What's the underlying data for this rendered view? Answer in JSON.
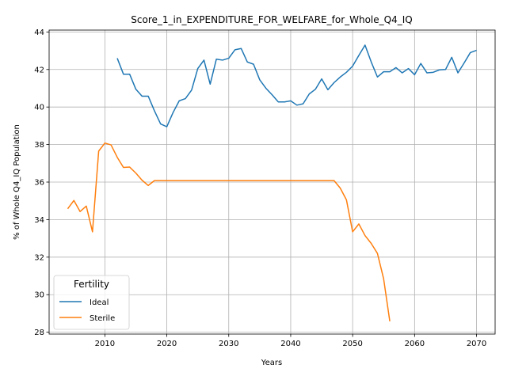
{
  "chart_data": {
    "type": "line",
    "title": "Score_1_in_EXPENDITURE_FOR_WELFARE_for_Whole_Q4_IQ",
    "xlabel": "Years",
    "ylabel": "% of Whole Q4_IQ Population",
    "xlim": [
      2001,
      2073
    ],
    "ylim": [
      27.9,
      44.1
    ],
    "x_ticks": [
      2010,
      2020,
      2030,
      2040,
      2050,
      2060,
      2070
    ],
    "y_ticks": [
      28,
      30,
      32,
      34,
      36,
      38,
      40,
      42,
      44
    ],
    "grid": true,
    "legend": {
      "title": "Fertility",
      "placement": "lower-left"
    },
    "series": [
      {
        "name": "Ideal",
        "color": "#1f77b4",
        "points": [
          [
            2012,
            42.6
          ],
          [
            2013,
            41.75
          ],
          [
            2014,
            41.75
          ],
          [
            2015,
            40.95
          ],
          [
            2016,
            40.58
          ],
          [
            2017,
            40.58
          ],
          [
            2018,
            39.8
          ],
          [
            2019,
            39.1
          ],
          [
            2020,
            38.95
          ],
          [
            2021,
            39.7
          ],
          [
            2022,
            40.33
          ],
          [
            2023,
            40.45
          ],
          [
            2024,
            40.9
          ],
          [
            2025,
            42.05
          ],
          [
            2026,
            42.5
          ],
          [
            2027,
            41.22
          ],
          [
            2028,
            42.55
          ],
          [
            2029,
            42.5
          ],
          [
            2030,
            42.6
          ],
          [
            2031,
            43.05
          ],
          [
            2032,
            43.12
          ],
          [
            2033,
            42.4
          ],
          [
            2034,
            42.28
          ],
          [
            2035,
            41.45
          ],
          [
            2036,
            41.0
          ],
          [
            2037,
            40.65
          ],
          [
            2038,
            40.27
          ],
          [
            2039,
            40.27
          ],
          [
            2040,
            40.33
          ],
          [
            2041,
            40.1
          ],
          [
            2042,
            40.17
          ],
          [
            2043,
            40.7
          ],
          [
            2044,
            40.95
          ],
          [
            2045,
            41.5
          ],
          [
            2046,
            40.92
          ],
          [
            2047,
            41.3
          ],
          [
            2048,
            41.6
          ],
          [
            2049,
            41.85
          ],
          [
            2050,
            42.18
          ],
          [
            2051,
            42.75
          ],
          [
            2052,
            43.3
          ],
          [
            2053,
            42.4
          ],
          [
            2054,
            41.6
          ],
          [
            2055,
            41.88
          ],
          [
            2056,
            41.88
          ],
          [
            2057,
            42.1
          ],
          [
            2058,
            41.82
          ],
          [
            2059,
            42.05
          ],
          [
            2060,
            41.72
          ],
          [
            2061,
            42.32
          ],
          [
            2062,
            41.82
          ],
          [
            2063,
            41.85
          ],
          [
            2064,
            41.98
          ],
          [
            2065,
            42.0
          ],
          [
            2066,
            42.65
          ],
          [
            2067,
            41.82
          ],
          [
            2068,
            42.35
          ],
          [
            2069,
            42.9
          ],
          [
            2070,
            43.02
          ]
        ]
      },
      {
        "name": "Sterile",
        "color": "#ff7f0e",
        "points": [
          [
            2004,
            34.58
          ],
          [
            2005,
            35.02
          ],
          [
            2006,
            34.43
          ],
          [
            2007,
            34.72
          ],
          [
            2008,
            33.35
          ],
          [
            2009,
            37.65
          ],
          [
            2010,
            38.08
          ],
          [
            2011,
            37.98
          ],
          [
            2012,
            37.32
          ],
          [
            2013,
            36.78
          ],
          [
            2014,
            36.8
          ],
          [
            2015,
            36.48
          ],
          [
            2016,
            36.1
          ],
          [
            2017,
            35.82
          ],
          [
            2018,
            36.08
          ],
          [
            2019,
            36.08
          ],
          [
            2020,
            36.08
          ],
          [
            2025,
            36.08
          ],
          [
            2030,
            36.08
          ],
          [
            2035,
            36.08
          ],
          [
            2040,
            36.08
          ],
          [
            2045,
            36.08
          ],
          [
            2047,
            36.08
          ],
          [
            2048,
            35.68
          ],
          [
            2049,
            35.05
          ],
          [
            2050,
            33.35
          ],
          [
            2051,
            33.77
          ],
          [
            2052,
            33.15
          ],
          [
            2053,
            32.73
          ],
          [
            2054,
            32.2
          ],
          [
            2055,
            30.85
          ],
          [
            2056,
            28.58
          ]
        ]
      }
    ]
  }
}
